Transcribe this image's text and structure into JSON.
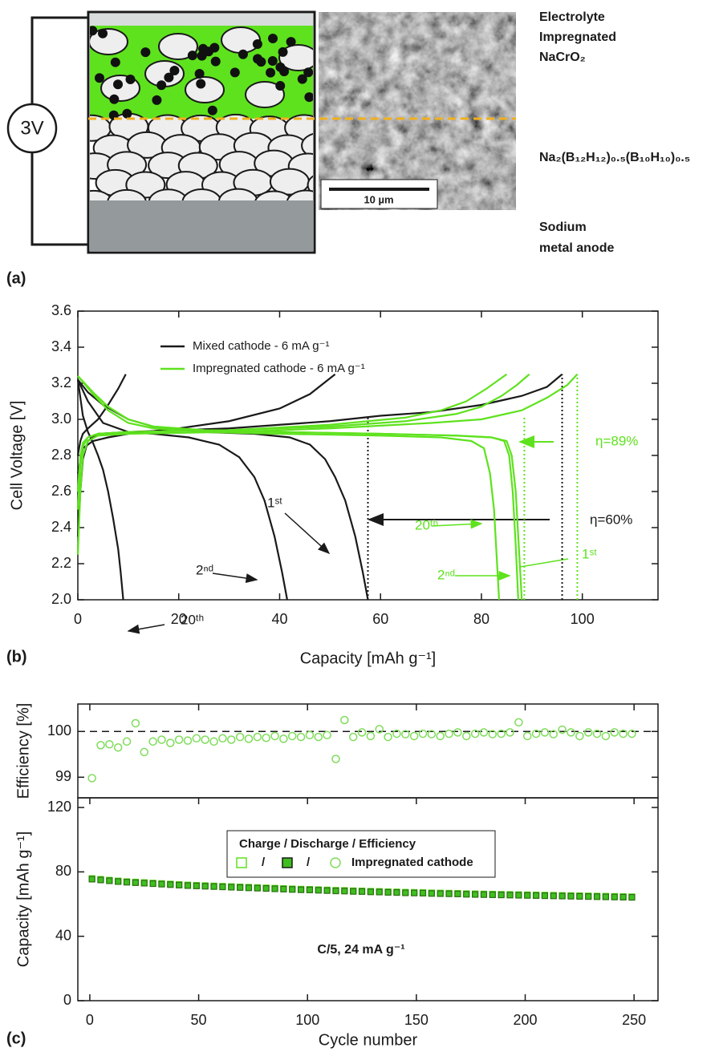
{
  "diagram": {
    "panel_label": "(a)",
    "source_label": "3V",
    "scale_bar": "10 µm",
    "cathode_label": [
      "Electrolyte",
      "Impregnated",
      "NaCrO₂"
    ],
    "electrolyte_label": "Na₂(B₁₂H₁₂)₀.₅(B₁₀H₁₀)₀.₅",
    "anode_label": [
      "Sodium",
      "metal anode"
    ]
  },
  "chart_data": [
    {
      "type": "line",
      "panel_label": "(b)",
      "xlabel": "Capacity [mAh g⁻¹]",
      "ylabel": "Cell Voltage [V]",
      "xlim": [
        0,
        115
      ],
      "xticks": [
        0,
        20,
        40,
        60,
        80,
        100
      ],
      "ylim": [
        2.0,
        3.6
      ],
      "yticks": [
        {
          "value": 2,
          "label": "2.0"
        },
        2.2,
        2.4,
        2.6,
        2.8,
        {
          "value": 3,
          "label": "3.0"
        },
        3.2,
        3.4,
        3.6
      ],
      "series": [
        {
          "name": "Mixed cathode - 6 mA g⁻¹",
          "color": "#1a1a1a",
          "x": [
            0,
            2,
            5,
            10,
            15,
            25,
            35,
            42,
            46,
            49,
            51,
            53,
            55,
            56.5,
            57.5
          ],
          "values": [
            3.22,
            3.15,
            3.08,
            3.0,
            2.96,
            2.93,
            2.92,
            2.9,
            2.86,
            2.78,
            2.68,
            2.55,
            2.35,
            2.15,
            2.0
          ]
        },
        {
          "color": "#1a1a1a",
          "x": [
            0,
            0.5,
            1,
            2,
            4,
            10,
            20,
            30,
            40,
            50,
            60,
            70,
            80,
            88,
            93,
            96
          ],
          "values": [
            2.35,
            2.6,
            2.78,
            2.88,
            2.92,
            2.93,
            2.94,
            2.95,
            2.97,
            2.99,
            3.02,
            3.04,
            3.08,
            3.13,
            3.18,
            3.25
          ]
        },
        {
          "color": "#1a1a1a",
          "x": [
            0,
            2,
            5,
            10,
            15,
            22,
            28,
            32,
            35,
            37,
            39,
            40.5,
            41.5
          ],
          "values": [
            3.22,
            3.1,
            2.98,
            2.93,
            2.92,
            2.9,
            2.86,
            2.79,
            2.68,
            2.55,
            2.35,
            2.15,
            2.0
          ]
        },
        {
          "color": "#1a1a1a",
          "x": [
            0,
            1,
            3,
            6,
            10,
            20,
            30,
            40,
            46,
            51
          ],
          "values": [
            2.7,
            2.84,
            2.88,
            2.9,
            2.92,
            2.95,
            2.99,
            3.06,
            3.14,
            3.25
          ]
        },
        {
          "color": "#1a1a1a",
          "x": [
            0,
            0.5,
            1,
            2,
            3,
            4,
            5,
            6,
            7,
            8,
            8.5,
            9
          ],
          "values": [
            3.22,
            3.12,
            3.02,
            2.93,
            2.87,
            2.8,
            2.72,
            2.6,
            2.45,
            2.28,
            2.15,
            2.0
          ]
        },
        {
          "color": "#1a1a1a",
          "x": [
            0,
            0.5,
            1,
            2,
            4,
            6,
            8,
            9.5
          ],
          "values": [
            2.8,
            2.88,
            2.92,
            2.95,
            3.0,
            3.08,
            3.17,
            3.25
          ]
        },
        {
          "name": "Impregnated cathode - 6 mA g⁻¹",
          "color": "#5ee21e",
          "x": [
            0,
            3,
            6,
            10,
            15,
            25,
            40,
            60,
            75,
            82,
            85,
            86,
            86.8,
            87.4,
            88
          ],
          "values": [
            3.24,
            3.15,
            3.07,
            3.0,
            2.96,
            2.94,
            2.93,
            2.92,
            2.91,
            2.9,
            2.88,
            2.8,
            2.6,
            2.3,
            2.0
          ]
        },
        {
          "color": "#5ee21e",
          "x": [
            0,
            0.5,
            1,
            2,
            4,
            10,
            30,
            50,
            70,
            80,
            88,
            93,
            97,
            99
          ],
          "values": [
            2.25,
            2.6,
            2.8,
            2.88,
            2.91,
            2.92,
            2.93,
            2.95,
            2.98,
            3.0,
            3.05,
            3.12,
            3.19,
            3.25
          ]
        },
        {
          "color": "#5ee21e",
          "x": [
            0,
            3,
            6,
            10,
            15,
            25,
            40,
            60,
            75,
            82,
            84.5,
            85.5,
            86.2,
            86.8,
            87.3
          ],
          "values": [
            3.24,
            3.15,
            3.07,
            3.0,
            2.96,
            2.94,
            2.93,
            2.92,
            2.91,
            2.9,
            2.88,
            2.8,
            2.6,
            2.3,
            2.0
          ]
        },
        {
          "color": "#5ee21e",
          "x": [
            0,
            0.5,
            1,
            2,
            4,
            10,
            30,
            50,
            65,
            75,
            80,
            84,
            87,
            89.5
          ],
          "values": [
            2.5,
            2.75,
            2.85,
            2.9,
            2.92,
            2.93,
            2.94,
            2.96,
            2.99,
            3.03,
            3.07,
            3.13,
            3.19,
            3.25
          ]
        },
        {
          "color": "#5ee21e",
          "x": [
            0,
            3,
            6,
            10,
            15,
            25,
            40,
            60,
            72,
            78,
            80.5,
            81.7,
            82.5,
            83,
            83.5
          ],
          "values": [
            3.24,
            3.14,
            3.05,
            2.98,
            2.95,
            2.93,
            2.92,
            2.91,
            2.9,
            2.88,
            2.84,
            2.7,
            2.5,
            2.25,
            2.0
          ]
        },
        {
          "color": "#5ee21e",
          "x": [
            0,
            0.5,
            1,
            2,
            4,
            10,
            30,
            50,
            65,
            72,
            77,
            81,
            85
          ],
          "values": [
            2.6,
            2.8,
            2.87,
            2.9,
            2.92,
            2.93,
            2.94,
            2.97,
            3.01,
            3.05,
            3.1,
            3.17,
            3.25
          ]
        }
      ],
      "reference_lines": [
        {
          "x": 57.5,
          "y": 3.02,
          "color": "#1a1a1a"
        },
        {
          "x": 96,
          "y": 3.25,
          "color": "#1a1a1a"
        },
        {
          "x": 88.5,
          "y": 3.02,
          "color": "#5ee21e"
        },
        {
          "x": 99,
          "y": 3.25,
          "color": "#5ee21e"
        }
      ],
      "annotations": [
        {
          "text": "1ˢᵗ",
          "color": "#1a1a1a"
        },
        {
          "text": "2ⁿᵈ",
          "color": "#1a1a1a"
        },
        {
          "text": "20ᵗʰ",
          "color": "#1a1a1a"
        },
        {
          "text": "η=60%",
          "color": "#1a1a1a"
        },
        {
          "text": "η=89%",
          "color": "#5ee21e"
        },
        {
          "text": "20ᵗʰ",
          "color": "#5ee21e"
        },
        {
          "text": "2ⁿᵈ",
          "color": "#5ee21e"
        },
        {
          "text": "1ˢᵗ",
          "color": "#5ee21e"
        }
      ]
    },
    {
      "type": "scatter",
      "ylabel": "Efficiency [%]",
      "xlim": [
        -5.5,
        261
      ],
      "ylim": [
        98.55,
        100.6
      ],
      "yticks": [
        99,
        100
      ],
      "hline": 100,
      "color": "#7fdc5a",
      "x": [
        1,
        5,
        9,
        13,
        17,
        21,
        25,
        29,
        33,
        37,
        41,
        45,
        49,
        53,
        57,
        61,
        65,
        69,
        73,
        77,
        81,
        85,
        89,
        93,
        97,
        101,
        105,
        109,
        113,
        117,
        121,
        125,
        129,
        133,
        137,
        141,
        145,
        149,
        153,
        157,
        161,
        165,
        169,
        173,
        177,
        181,
        185,
        189,
        193,
        197,
        201,
        205,
        209,
        213,
        217,
        221,
        225,
        229,
        233,
        237,
        241,
        245,
        249
      ],
      "values": [
        98.98,
        99.7,
        99.72,
        99.65,
        99.78,
        100.18,
        99.55,
        99.78,
        99.82,
        99.75,
        99.82,
        99.8,
        99.85,
        99.82,
        99.78,
        99.85,
        99.82,
        99.88,
        99.84,
        99.88,
        99.86,
        99.9,
        99.84,
        99.9,
        99.88,
        99.92,
        99.88,
        99.92,
        99.4,
        100.25,
        99.88,
        99.98,
        99.9,
        100.05,
        99.88,
        99.95,
        99.94,
        99.9,
        99.95,
        99.94,
        99.9,
        99.95,
        99.98,
        99.9,
        99.95,
        99.98,
        99.94,
        99.95,
        99.98,
        100.2,
        99.9,
        99.95,
        99.98,
        99.94,
        100.04,
        99.98,
        99.9,
        99.98,
        99.95,
        99.9,
        99.98,
        99.95,
        99.95
      ]
    },
    {
      "type": "scatter",
      "panel_label": "(c)",
      "xlabel": "Cycle number",
      "ylabel": "Capacity [mAh g⁻¹]",
      "xlim": [
        -5.5,
        261
      ],
      "xticks": [
        0,
        50,
        100,
        150,
        200,
        250
      ],
      "ylim": [
        0,
        126
      ],
      "yticks": [
        0,
        40,
        80,
        120
      ],
      "x": [
        1,
        5,
        9,
        13,
        17,
        21,
        25,
        29,
        33,
        37,
        41,
        45,
        49,
        53,
        57,
        61,
        65,
        69,
        73,
        77,
        81,
        85,
        89,
        93,
        97,
        101,
        105,
        109,
        113,
        117,
        121,
        125,
        129,
        133,
        137,
        141,
        145,
        149,
        153,
        157,
        161,
        165,
        169,
        173,
        177,
        181,
        185,
        189,
        193,
        197,
        201,
        205,
        209,
        213,
        217,
        221,
        225,
        229,
        233,
        237,
        241,
        245,
        249
      ],
      "series": [
        {
          "marker": "square-open",
          "color": "#5ee21e",
          "values": [
            75.9,
            75.4,
            74.9,
            74.4,
            74.0,
            73.7,
            73.4,
            73.1,
            72.8,
            72.5,
            72.2,
            71.9,
            71.7,
            71.5,
            71.3,
            71.1,
            70.9,
            70.7,
            70.5,
            70.3,
            70.1,
            69.9,
            69.7,
            69.5,
            69.3,
            69.2,
            69.0,
            68.8,
            68.6,
            68.5,
            68.3,
            68.2,
            68.0,
            67.9,
            67.7,
            67.6,
            67.4,
            67.3,
            67.2,
            67.0,
            66.9,
            66.8,
            66.7,
            66.5,
            66.4,
            66.3,
            66.2,
            66.1,
            66.0,
            65.9,
            65.8,
            65.7,
            65.6,
            65.5,
            65.4,
            65.3,
            65.2,
            65.1,
            65.0,
            64.9,
            64.8,
            64.7,
            64.6
          ]
        },
        {
          "marker": "square-filled",
          "color": "#3fbf1f",
          "values": [
            75.5,
            75.0,
            74.5,
            74.0,
            73.6,
            73.3,
            73.0,
            72.7,
            72.4,
            72.1,
            71.8,
            71.5,
            71.3,
            71.1,
            70.9,
            70.7,
            70.5,
            70.3,
            70.1,
            69.9,
            69.7,
            69.5,
            69.3,
            69.1,
            68.9,
            68.8,
            68.6,
            68.4,
            68.2,
            68.1,
            67.9,
            67.8,
            67.6,
            67.5,
            67.3,
            67.2,
            67.0,
            66.9,
            66.8,
            66.6,
            66.5,
            66.4,
            66.3,
            66.1,
            66.0,
            65.9,
            65.8,
            65.7,
            65.6,
            65.5,
            65.4,
            65.3,
            65.2,
            65.1,
            65.0,
            64.9,
            64.8,
            64.7,
            64.6,
            64.5,
            64.4,
            64.3,
            64.2
          ]
        }
      ],
      "legend": {
        "title": "Charge / Discharge / Efficiency",
        "separator": "/",
        "label": "Impregnated cathode"
      },
      "annotation": "C/5, 24 mA g⁻¹"
    }
  ]
}
